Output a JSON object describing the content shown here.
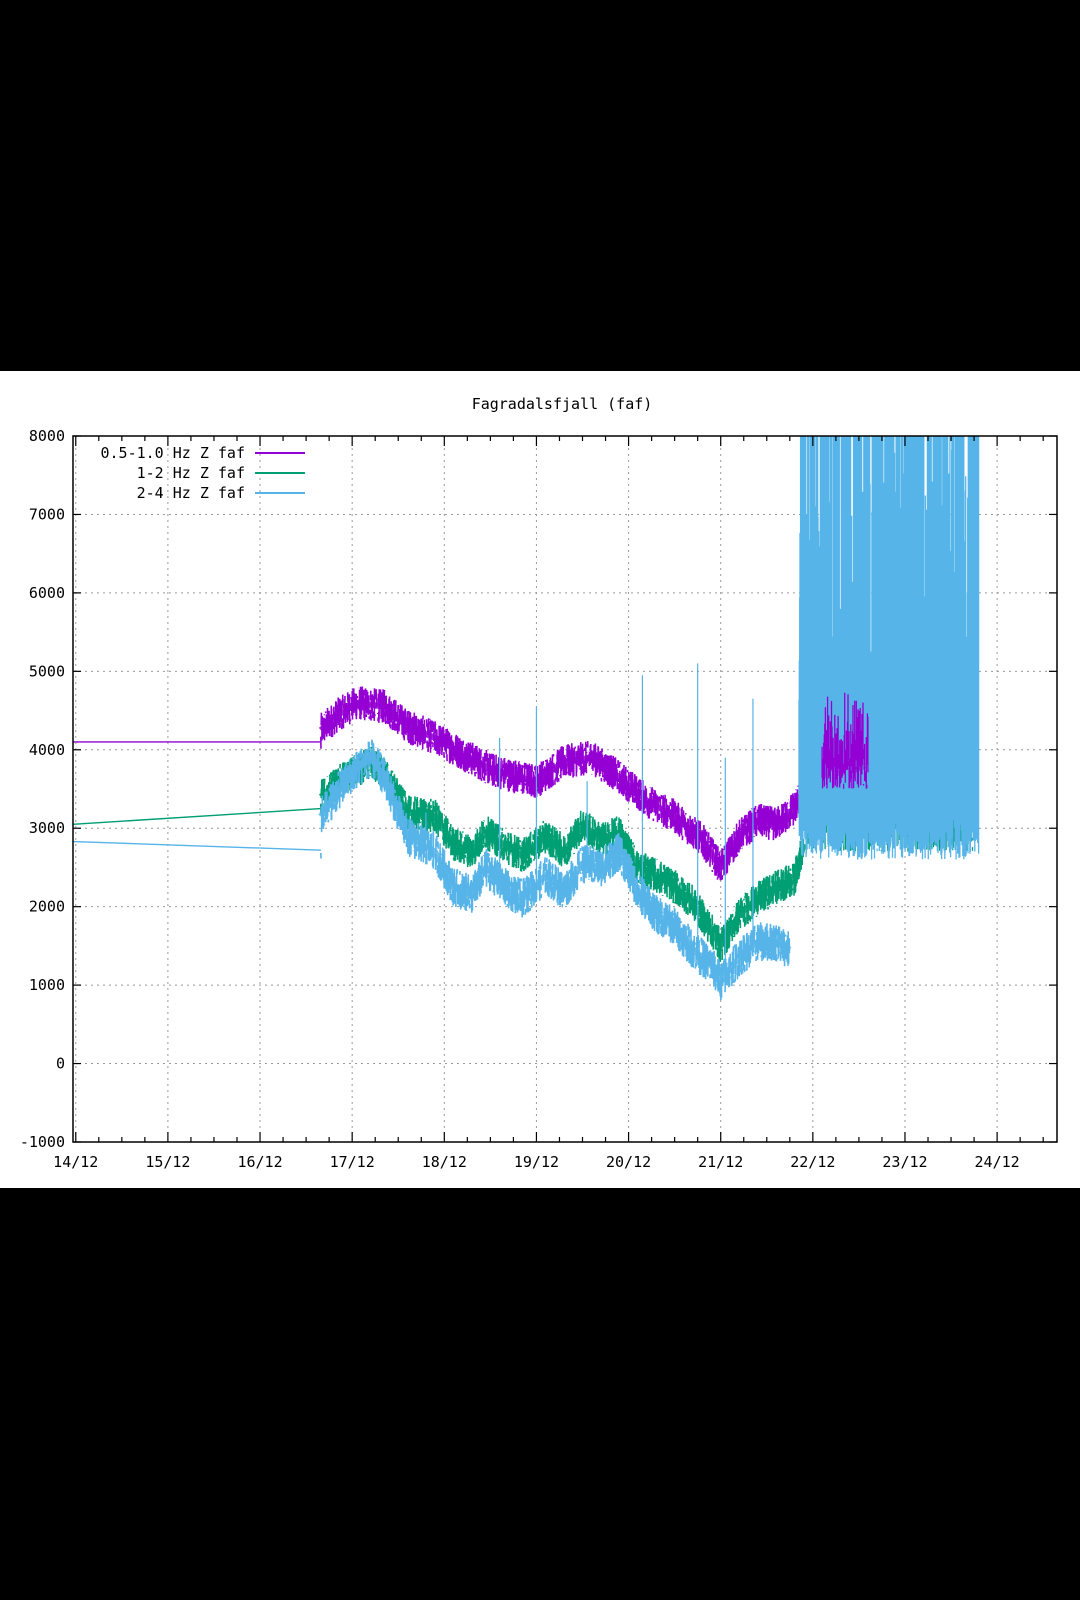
{
  "colors": {
    "background": "#000000",
    "plot_background": "#ffffff",
    "series": [
      "#9400d3",
      "#009e73",
      "#56b4e9"
    ]
  },
  "chart_data": {
    "type": "line",
    "title": "Fagradalsfjall (faf)",
    "xlabel": "",
    "ylabel": "",
    "grid": true,
    "legend_position": "top-left",
    "ylim": [
      -1000,
      8000
    ],
    "xlim": [
      13.97,
      24.65
    ],
    "x_unit": "day of December",
    "yticks": [
      -1000,
      0,
      1000,
      2000,
      3000,
      4000,
      5000,
      6000,
      7000,
      8000
    ],
    "xticks": [
      {
        "x": 14,
        "label": "14/12"
      },
      {
        "x": 15,
        "label": "15/12"
      },
      {
        "x": 16,
        "label": "16/12"
      },
      {
        "x": 17,
        "label": "17/12"
      },
      {
        "x": 18,
        "label": "18/12"
      },
      {
        "x": 19,
        "label": "19/12"
      },
      {
        "x": 20,
        "label": "20/12"
      },
      {
        "x": 21,
        "label": "21/12"
      },
      {
        "x": 22,
        "label": "22/12"
      },
      {
        "x": 23,
        "label": "23/12"
      },
      {
        "x": 24,
        "label": "24/12"
      }
    ],
    "series": [
      {
        "name": "0.5-1.0 Hz Z faf",
        "color": "#9400d3",
        "x": [
          13.97,
          16.66,
          16.66,
          16.85,
          17.05,
          17.35,
          17.6,
          17.9,
          18.2,
          18.5,
          18.8,
          19.0,
          19.3,
          19.6,
          19.9,
          20.2,
          20.5,
          20.8,
          21.0,
          21.2,
          21.4,
          21.6,
          21.8,
          21.95,
          22.1,
          22.3,
          22.6
        ],
        "y": [
          4100,
          4100,
          4250,
          4450,
          4600,
          4550,
          4300,
          4150,
          3950,
          3750,
          3650,
          3600,
          3850,
          3900,
          3650,
          3350,
          3150,
          2850,
          2500,
          2900,
          3100,
          3050,
          3250,
          3600,
          3800,
          3900,
          4100
        ],
        "band": 220
      },
      {
        "name": "1-2 Hz Z faf",
        "color": "#009e73",
        "x": [
          13.97,
          16.66,
          16.66,
          16.8,
          17.0,
          17.2,
          17.35,
          17.6,
          17.9,
          18.1,
          18.3,
          18.45,
          18.7,
          18.85,
          19.1,
          19.3,
          19.5,
          19.7,
          19.9,
          20.1,
          20.3,
          20.5,
          20.7,
          20.9,
          21.0,
          21.2,
          21.4,
          21.6,
          21.8,
          21.9
        ],
        "y": [
          3050,
          3250,
          3400,
          3550,
          3700,
          3850,
          3700,
          3200,
          3150,
          2800,
          2700,
          2950,
          2750,
          2650,
          2900,
          2700,
          3050,
          2850,
          2950,
          2500,
          2400,
          2250,
          2050,
          1700,
          1500,
          1900,
          2100,
          2250,
          2350,
          2800
        ],
        "band": 220,
        "noisy_region": {
          "x": [
            21.92,
            23.75
          ],
          "y_min": 2700,
          "y_max": 5500
        }
      },
      {
        "name": "2-4 Hz Z faf",
        "color": "#56b4e9",
        "x": [
          13.97,
          16.66,
          16.66,
          16.8,
          17.0,
          17.2,
          17.35,
          17.6,
          17.9,
          18.1,
          18.3,
          18.45,
          18.7,
          18.85,
          19.1,
          19.3,
          19.5,
          19.7,
          19.9,
          20.1,
          20.3,
          20.5,
          20.7,
          20.9,
          21.0,
          21.2,
          21.4,
          21.6,
          21.75
        ],
        "y": [
          2830,
          2720,
          3150,
          3400,
          3700,
          3900,
          3650,
          2900,
          2700,
          2250,
          2150,
          2500,
          2200,
          2100,
          2400,
          2200,
          2550,
          2500,
          2700,
          2200,
          1900,
          1750,
          1450,
          1250,
          1050,
          1350,
          1550,
          1550,
          1450
        ],
        "band": 250,
        "noisy_region": {
          "x": [
            21.85,
            23.8
          ],
          "y_min": 2600,
          "y_max": 8000
        }
      }
    ]
  }
}
